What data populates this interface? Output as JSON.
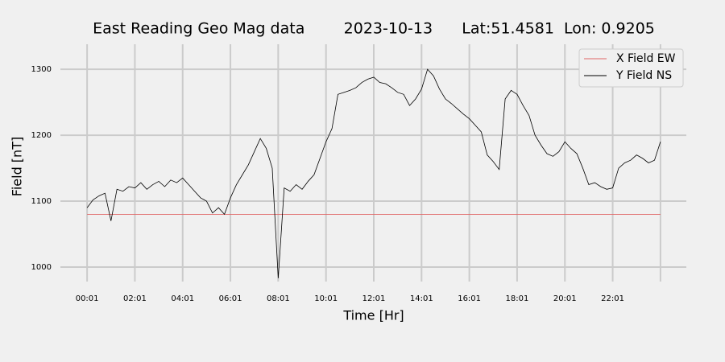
{
  "chart_data": {
    "type": "line",
    "title": "East Reading Geo Mag data        2023-10-13      Lat:51.4581  Lon: 0.9205",
    "xlabel": "Time  [Hr]",
    "ylabel": "Field  [nT]",
    "xlim": [
      -1.1,
      25.1
    ],
    "ylim": [
      978,
      1338
    ],
    "xticks": [
      {
        "value": 0.0167,
        "label": "00:01"
      },
      {
        "value": 2.0167,
        "label": "02:01"
      },
      {
        "value": 4.0167,
        "label": "04:01"
      },
      {
        "value": 6.0167,
        "label": "06:01"
      },
      {
        "value": 8.0167,
        "label": "08:01"
      },
      {
        "value": 10.0167,
        "label": "10:01"
      },
      {
        "value": 12.0167,
        "label": "12:01"
      },
      {
        "value": 14.0167,
        "label": "14:01"
      },
      {
        "value": 16.0167,
        "label": "16:01"
      },
      {
        "value": 18.0167,
        "label": "18:01"
      },
      {
        "value": 20.0167,
        "label": "20:01"
      },
      {
        "value": 22.0167,
        "label": "22:01"
      },
      {
        "value": 24.0167,
        "label": null
      }
    ],
    "yticks": [
      1000,
      1100,
      1200,
      1300
    ],
    "grid": true,
    "legend": "upper right",
    "series": [
      {
        "name": "X Field EW",
        "color": "#e06666",
        "x": [
          0.0167,
          24.0167
        ],
        "values": [
          1080,
          1080
        ]
      },
      {
        "name": "Y Field NS",
        "color": "#000000",
        "x": [
          0.0167,
          0.2667,
          0.5167,
          0.7667,
          1.0167,
          1.2667,
          1.5167,
          1.7667,
          2.0167,
          2.2667,
          2.5167,
          2.7667,
          3.0167,
          3.2667,
          3.5167,
          3.7667,
          4.0167,
          4.2667,
          4.5167,
          4.7667,
          5.0167,
          5.2667,
          5.5167,
          5.7667,
          6.0167,
          6.2667,
          6.5167,
          6.7667,
          7.0167,
          7.2667,
          7.5167,
          7.7667,
          8.0167,
          8.2667,
          8.5167,
          8.7667,
          9.0167,
          9.2667,
          9.5167,
          9.7667,
          10.0167,
          10.2667,
          10.5167,
          10.7667,
          11.0167,
          11.2667,
          11.5167,
          11.7667,
          12.0167,
          12.2667,
          12.5167,
          12.7667,
          13.0167,
          13.2667,
          13.5167,
          13.7667,
          14.0167,
          14.2667,
          14.5167,
          14.7667,
          15.0167,
          15.2667,
          15.5167,
          15.7667,
          16.0167,
          16.2667,
          16.5167,
          16.7667,
          17.0167,
          17.2667,
          17.5167,
          17.7667,
          18.0167,
          18.2667,
          18.5167,
          18.7667,
          19.0167,
          19.2667,
          19.5167,
          19.7667,
          20.0167,
          20.2667,
          20.5167,
          20.7667,
          21.0167,
          21.2667,
          21.5167,
          21.7667,
          22.0167,
          22.2667,
          22.5167,
          22.7667,
          23.0167,
          23.2667,
          23.5167,
          23.7667,
          24.0167
        ],
        "values": [
          1090,
          1102,
          1108,
          1112,
          1070,
          1118,
          1115,
          1122,
          1120,
          1128,
          1118,
          1125,
          1130,
          1122,
          1132,
          1128,
          1135,
          1125,
          1115,
          1105,
          1100,
          1082,
          1090,
          1080,
          1105,
          1125,
          1140,
          1155,
          1175,
          1195,
          1180,
          1150,
          983,
          1120,
          1115,
          1125,
          1118,
          1130,
          1140,
          1165,
          1190,
          1210,
          1262,
          1265,
          1268,
          1272,
          1280,
          1285,
          1288,
          1280,
          1278,
          1272,
          1265,
          1262,
          1245,
          1255,
          1270,
          1300,
          1290,
          1270,
          1255,
          1248,
          1240,
          1232,
          1225,
          1215,
          1205,
          1170,
          1160,
          1148,
          1255,
          1268,
          1262,
          1245,
          1230,
          1200,
          1185,
          1172,
          1168,
          1175,
          1190,
          1180,
          1172,
          1150,
          1125,
          1128,
          1122,
          1118,
          1120,
          1150,
          1158,
          1162,
          1170,
          1165,
          1158,
          1162,
          1190
        ]
      }
    ]
  }
}
